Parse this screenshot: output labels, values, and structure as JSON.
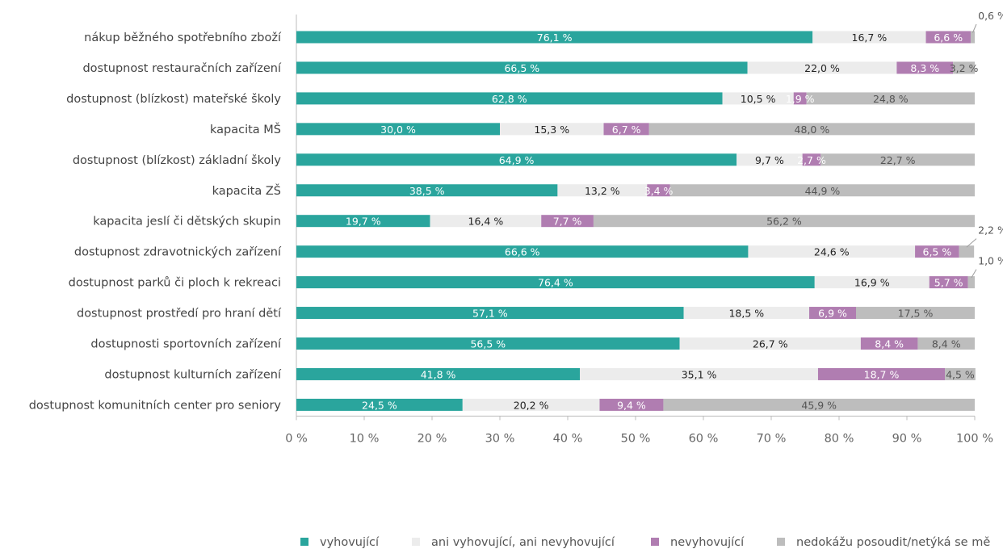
{
  "chart_data": {
    "type": "bar",
    "orientation": "horizontal",
    "stacked": true,
    "categories": [
      "nákup běžného spotřebního zboží",
      "dostupnost restauračních zařízení",
      "dostupnost (blízkost) mateřské školy",
      "kapacita MŠ",
      "dostupnost (blízkost) základní školy",
      "kapacita ZŠ",
      "kapacita jeslí či dětských skupin",
      "dostupnost zdravotnických zařízení",
      "dostupnost parků či  ploch k rekreaci",
      "dostupnost prostředí pro hraní dětí",
      "dostupnosti sportovních zařízení",
      "dostupnost kulturních zařízení",
      "dostupnost komunitních center pro seniory"
    ],
    "series": [
      {
        "name": "vyhovující",
        "color": "#2aa59d",
        "values": [
          76.1,
          66.5,
          62.8,
          30.0,
          64.9,
          38.5,
          19.7,
          66.6,
          76.4,
          57.1,
          56.5,
          41.8,
          24.5
        ],
        "labels": [
          "76,1 %",
          "66,5 %",
          "62,8 %",
          "30,0 %",
          "64,9 %",
          "38,5 %",
          "19,7 %",
          "66,6 %",
          "76,4 %",
          "57,1 %",
          "56,5 %",
          "41,8 %",
          "24,5 %"
        ]
      },
      {
        "name": "ani vyhovující, ani nevyhovující",
        "color": "#ececec",
        "values": [
          16.7,
          22.0,
          10.5,
          15.3,
          9.7,
          13.2,
          16.4,
          24.6,
          16.9,
          18.5,
          26.7,
          35.1,
          20.2
        ],
        "labels": [
          "16,7 %",
          "22,0 %",
          "10,5 %",
          "15,3 %",
          "9,7 %",
          "13,2 %",
          "16,4 %",
          "24,6 %",
          "16,9 %",
          "18,5 %",
          "26,7 %",
          "35,1 %",
          "20,2 %"
        ]
      },
      {
        "name": "nevyhovující",
        "color": "#b07db1",
        "values": [
          6.6,
          8.3,
          1.9,
          6.7,
          2.7,
          3.4,
          7.7,
          6.5,
          5.7,
          6.9,
          8.4,
          18.7,
          9.4
        ],
        "labels": [
          "6,6 %",
          "8,3 %",
          "1,9 %",
          "6,7 %",
          "2,7 %",
          "3,4 %",
          "7,7 %",
          "6,5 %",
          "5,7 %",
          "6,9 %",
          "8,4 %",
          "18,7 %",
          "9,4 %"
        ]
      },
      {
        "name": "nedokážu posoudit/netýká se mě",
        "color": "#bdbdbd",
        "values": [
          0.6,
          3.2,
          24.8,
          48.0,
          22.7,
          44.9,
          56.2,
          2.2,
          1.0,
          17.5,
          8.4,
          4.5,
          45.9
        ],
        "labels": [
          "0,6 %",
          "3,2 %",
          "24,8 %",
          "48,0 %",
          "22,7 %",
          "44,9 %",
          "56,2 %",
          "2,2 %",
          "1,0 %",
          "17,5 %",
          "8,4 %",
          "4,5 %",
          "45,9 %"
        ]
      }
    ],
    "xlim": [
      0,
      100
    ],
    "x_ticks": [
      "0 %",
      "10 %",
      "20 %",
      "30 %",
      "40 %",
      "50 %",
      "60 %",
      "70 %",
      "80 %",
      "90 %",
      "100 %"
    ],
    "legend_position": "bottom-right"
  }
}
